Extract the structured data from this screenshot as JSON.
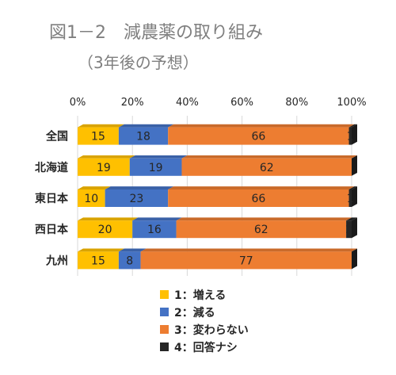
{
  "chart_data": {
    "type": "bar",
    "orientation": "horizontal",
    "stacked": true,
    "percent_stacked": true,
    "title": "図1－2　減農薬の取り組み",
    "subtitle": "（3年後の予想）",
    "categories": [
      "全国",
      "北海道",
      "東日本",
      "西日本",
      "九州"
    ],
    "series": [
      {
        "name": "1：増える",
        "color": "#ffc000",
        "values": [
          15,
          19,
          10,
          20,
          15
        ],
        "labels": [
          "15",
          "19",
          "10",
          "20",
          "15"
        ]
      },
      {
        "name": "2：減る",
        "color": "#4472c4",
        "values": [
          18,
          19,
          23,
          16,
          8
        ],
        "labels": [
          "18",
          "19",
          "23",
          "16",
          "8"
        ]
      },
      {
        "name": "3：変わらない",
        "color": "#ed7d31",
        "values": [
          66,
          62,
          66,
          62,
          77
        ],
        "labels": [
          "66",
          "62",
          "66",
          "62",
          "77"
        ]
      },
      {
        "name": "4：回答ナシ",
        "color": "#262626",
        "values": [
          1,
          0,
          1,
          2,
          0
        ],
        "labels": [
          "1",
          "",
          "1",
          "2",
          ""
        ]
      }
    ],
    "x_ticks": [
      "0%",
      "20%",
      "40%",
      "60%",
      "80%",
      "100%"
    ],
    "xlim": [
      0,
      100
    ],
    "legend_position": "bottom",
    "grid": true
  }
}
